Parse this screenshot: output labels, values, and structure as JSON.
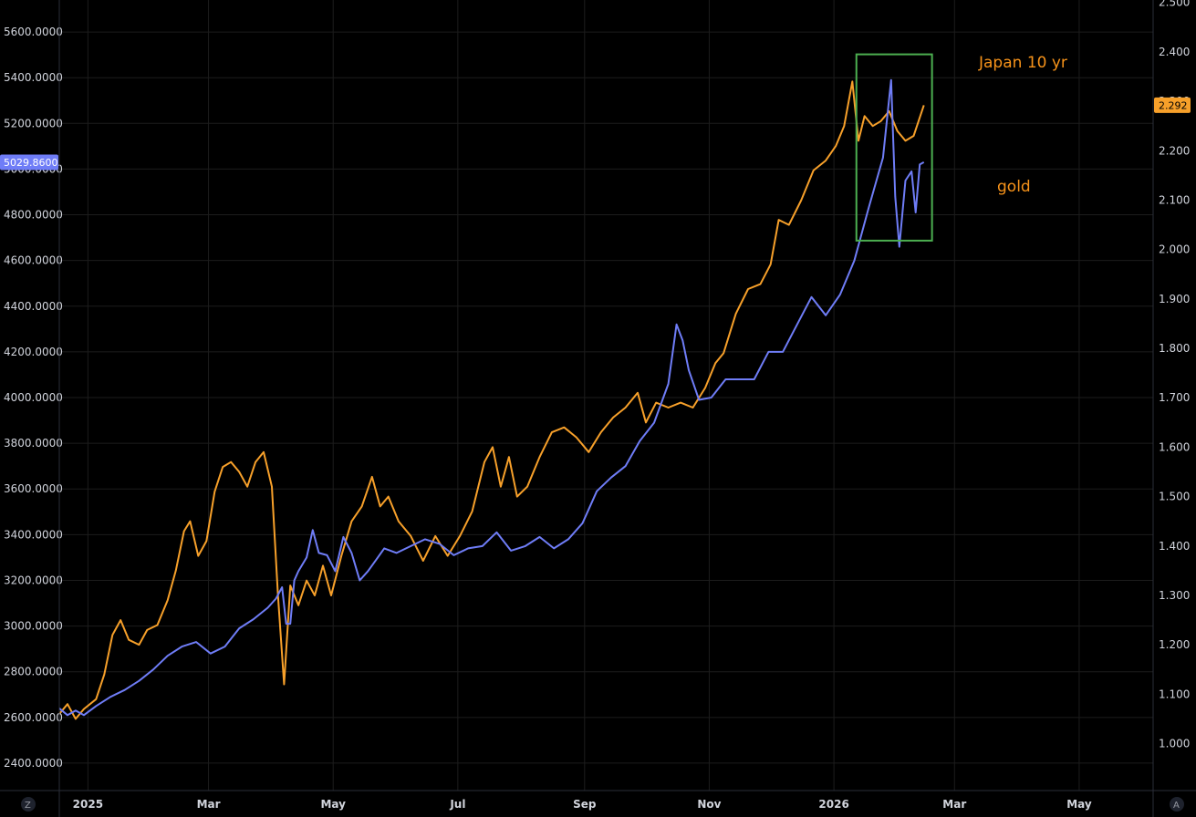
{
  "colors": {
    "background": "#000000",
    "grid": "#1c1c1c",
    "gold_series": "#6f7df7",
    "jgb_series": "#f7a02a",
    "box": "#4caf50",
    "annotation": "#f7931a"
  },
  "corner_left": "Z",
  "corner_right": "A",
  "chart_data": {
    "type": "line",
    "x_ticks": [
      "2025",
      "Mar",
      "May",
      "Jul",
      "Sep",
      "Nov",
      "2026",
      "Mar",
      "May"
    ],
    "left_axis": {
      "ylim": [
        2280,
        5740
      ],
      "ticks": [
        "2400.0000",
        "2600.0000",
        "2800.0000",
        "3000.0000",
        "3200.0000",
        "3400.0000",
        "3600.0000",
        "3800.0000",
        "4000.0000",
        "4200.0000",
        "4400.0000",
        "4600.0000",
        "4800.0000",
        "5000.0000",
        "5200.0000",
        "5400.0000",
        "5600.0000"
      ],
      "last_value": "5029.8600"
    },
    "right_axis": {
      "ylim": [
        0.905,
        2.505
      ],
      "ticks": [
        "1.000",
        "1.100",
        "1.200",
        "1.300",
        "1.400",
        "1.500",
        "1.600",
        "1.700",
        "1.800",
        "1.900",
        "2.000",
        "2.100",
        "2.200",
        "2.300",
        "2.400",
        "2.500"
      ],
      "last_value": "2.292"
    },
    "series": [
      {
        "axis": "left",
        "points": [
          [
            "2024-12-18",
            2640
          ],
          [
            "2024-12-22",
            2610
          ],
          [
            "2024-12-26",
            2630
          ],
          [
            "2024-12-30",
            2610
          ],
          [
            "2025-01-05",
            2650
          ],
          [
            "2025-01-12",
            2690
          ],
          [
            "2025-01-19",
            2720
          ],
          [
            "2025-01-26",
            2760
          ],
          [
            "2025-02-02",
            2810
          ],
          [
            "2025-02-09",
            2870
          ],
          [
            "2025-02-16",
            2910
          ],
          [
            "2025-02-23",
            2930
          ],
          [
            "2025-03-02",
            2880
          ],
          [
            "2025-03-09",
            2910
          ],
          [
            "2025-03-16",
            2990
          ],
          [
            "2025-03-23",
            3030
          ],
          [
            "2025-03-30",
            3080
          ],
          [
            "2025-04-03",
            3120
          ],
          [
            "2025-04-06",
            3170
          ],
          [
            "2025-04-08",
            3010
          ],
          [
            "2025-04-10",
            3010
          ],
          [
            "2025-04-12",
            3200
          ],
          [
            "2025-04-14",
            3240
          ],
          [
            "2025-04-18",
            3300
          ],
          [
            "2025-04-21",
            3420
          ],
          [
            "2025-04-24",
            3320
          ],
          [
            "2025-04-28",
            3310
          ],
          [
            "2025-05-02",
            3240
          ],
          [
            "2025-05-06",
            3390
          ],
          [
            "2025-05-10",
            3320
          ],
          [
            "2025-05-14",
            3200
          ],
          [
            "2025-05-18",
            3240
          ],
          [
            "2025-05-22",
            3290
          ],
          [
            "2025-05-26",
            3340
          ],
          [
            "2025-06-01",
            3320
          ],
          [
            "2025-06-08",
            3350
          ],
          [
            "2025-06-15",
            3380
          ],
          [
            "2025-06-22",
            3360
          ],
          [
            "2025-06-29",
            3310
          ],
          [
            "2025-07-06",
            3340
          ],
          [
            "2025-07-13",
            3350
          ],
          [
            "2025-07-20",
            3410
          ],
          [
            "2025-07-27",
            3330
          ],
          [
            "2025-08-03",
            3350
          ],
          [
            "2025-08-10",
            3390
          ],
          [
            "2025-08-17",
            3340
          ],
          [
            "2025-08-24",
            3380
          ],
          [
            "2025-08-31",
            3450
          ],
          [
            "2025-09-07",
            3590
          ],
          [
            "2025-09-14",
            3650
          ],
          [
            "2025-09-21",
            3700
          ],
          [
            "2025-09-28",
            3810
          ],
          [
            "2025-10-05",
            3890
          ],
          [
            "2025-10-12",
            4060
          ],
          [
            "2025-10-16",
            4320
          ],
          [
            "2025-10-19",
            4250
          ],
          [
            "2025-10-22",
            4120
          ],
          [
            "2025-10-27",
            3990
          ],
          [
            "2025-11-02",
            4000
          ],
          [
            "2025-11-09",
            4080
          ],
          [
            "2025-11-16",
            4080
          ],
          [
            "2025-11-23",
            4080
          ],
          [
            "2025-11-30",
            4200
          ],
          [
            "2025-12-07",
            4200
          ],
          [
            "2025-12-14",
            4320
          ],
          [
            "2025-12-21",
            4440
          ],
          [
            "2025-12-28",
            4360
          ],
          [
            "2026-01-04",
            4450
          ],
          [
            "2026-01-11",
            4600
          ],
          [
            "2026-01-18",
            4830
          ],
          [
            "2026-01-25",
            5050
          ],
          [
            "2026-01-29",
            5390
          ],
          [
            "2026-01-31",
            4880
          ],
          [
            "2026-02-02",
            4660
          ],
          [
            "2026-02-05",
            4950
          ],
          [
            "2026-02-08",
            4990
          ],
          [
            "2026-02-10",
            4810
          ],
          [
            "2026-02-12",
            5020
          ],
          [
            "2026-02-14",
            5029.86
          ]
        ]
      },
      {
        "axis": "right",
        "points": [
          [
            "2024-12-18",
            1.06
          ],
          [
            "2024-12-22",
            1.08
          ],
          [
            "2024-12-26",
            1.05
          ],
          [
            "2024-12-30",
            1.07
          ],
          [
            "2025-01-05",
            1.09
          ],
          [
            "2025-01-09",
            1.14
          ],
          [
            "2025-01-13",
            1.22
          ],
          [
            "2025-01-17",
            1.25
          ],
          [
            "2025-01-21",
            1.21
          ],
          [
            "2025-01-26",
            1.2
          ],
          [
            "2025-01-30",
            1.23
          ],
          [
            "2025-02-04",
            1.24
          ],
          [
            "2025-02-09",
            1.29
          ],
          [
            "2025-02-13",
            1.35
          ],
          [
            "2025-02-17",
            1.43
          ],
          [
            "2025-02-20",
            1.45
          ],
          [
            "2025-02-24",
            1.38
          ],
          [
            "2025-02-28",
            1.41
          ],
          [
            "2025-03-04",
            1.51
          ],
          [
            "2025-03-08",
            1.56
          ],
          [
            "2025-03-12",
            1.57
          ],
          [
            "2025-03-16",
            1.55
          ],
          [
            "2025-03-20",
            1.52
          ],
          [
            "2025-03-24",
            1.57
          ],
          [
            "2025-03-28",
            1.59
          ],
          [
            "2025-04-01",
            1.52
          ],
          [
            "2025-04-04",
            1.3
          ],
          [
            "2025-04-07",
            1.12
          ],
          [
            "2025-04-10",
            1.32
          ],
          [
            "2025-04-14",
            1.28
          ],
          [
            "2025-04-18",
            1.33
          ],
          [
            "2025-04-22",
            1.3
          ],
          [
            "2025-04-26",
            1.36
          ],
          [
            "2025-04-30",
            1.3
          ],
          [
            "2025-05-05",
            1.38
          ],
          [
            "2025-05-10",
            1.45
          ],
          [
            "2025-05-15",
            1.48
          ],
          [
            "2025-05-20",
            1.54
          ],
          [
            "2025-05-24",
            1.48
          ],
          [
            "2025-05-28",
            1.5
          ],
          [
            "2025-06-02",
            1.45
          ],
          [
            "2025-06-08",
            1.42
          ],
          [
            "2025-06-14",
            1.37
          ],
          [
            "2025-06-20",
            1.42
          ],
          [
            "2025-06-26",
            1.38
          ],
          [
            "2025-07-02",
            1.42
          ],
          [
            "2025-07-08",
            1.47
          ],
          [
            "2025-07-14",
            1.57
          ],
          [
            "2025-07-18",
            1.6
          ],
          [
            "2025-07-22",
            1.52
          ],
          [
            "2025-07-26",
            1.58
          ],
          [
            "2025-07-30",
            1.5
          ],
          [
            "2025-08-04",
            1.52
          ],
          [
            "2025-08-10",
            1.58
          ],
          [
            "2025-08-16",
            1.63
          ],
          [
            "2025-08-22",
            1.64
          ],
          [
            "2025-08-28",
            1.62
          ],
          [
            "2025-09-03",
            1.59
          ],
          [
            "2025-09-09",
            1.63
          ],
          [
            "2025-09-15",
            1.66
          ],
          [
            "2025-09-21",
            1.68
          ],
          [
            "2025-09-27",
            1.71
          ],
          [
            "2025-10-01",
            1.65
          ],
          [
            "2025-10-06",
            1.69
          ],
          [
            "2025-10-12",
            1.68
          ],
          [
            "2025-10-18",
            1.69
          ],
          [
            "2025-10-24",
            1.68
          ],
          [
            "2025-10-30",
            1.72
          ],
          [
            "2025-11-04",
            1.77
          ],
          [
            "2025-11-08",
            1.79
          ],
          [
            "2025-11-14",
            1.87
          ],
          [
            "2025-11-20",
            1.92
          ],
          [
            "2025-11-26",
            1.93
          ],
          [
            "2025-12-01",
            1.97
          ],
          [
            "2025-12-05",
            2.06
          ],
          [
            "2025-12-10",
            2.05
          ],
          [
            "2025-12-16",
            2.1
          ],
          [
            "2025-12-22",
            2.16
          ],
          [
            "2025-12-28",
            2.18
          ],
          [
            "2026-01-02",
            2.21
          ],
          [
            "2026-01-06",
            2.25
          ],
          [
            "2026-01-10",
            2.34
          ],
          [
            "2026-01-13",
            2.22
          ],
          [
            "2026-01-16",
            2.27
          ],
          [
            "2026-01-20",
            2.25
          ],
          [
            "2026-01-24",
            2.26
          ],
          [
            "2026-01-28",
            2.28
          ],
          [
            "2026-02-01",
            2.24
          ],
          [
            "2026-02-05",
            2.22
          ],
          [
            "2026-02-09",
            2.23
          ],
          [
            "2026-02-14",
            2.292
          ]
        ]
      }
    ],
    "annotations": [
      {
        "text": "Japan 10 yr",
        "color": "#f7931a"
      },
      {
        "text": "gold",
        "color": "#f7931a"
      }
    ]
  }
}
